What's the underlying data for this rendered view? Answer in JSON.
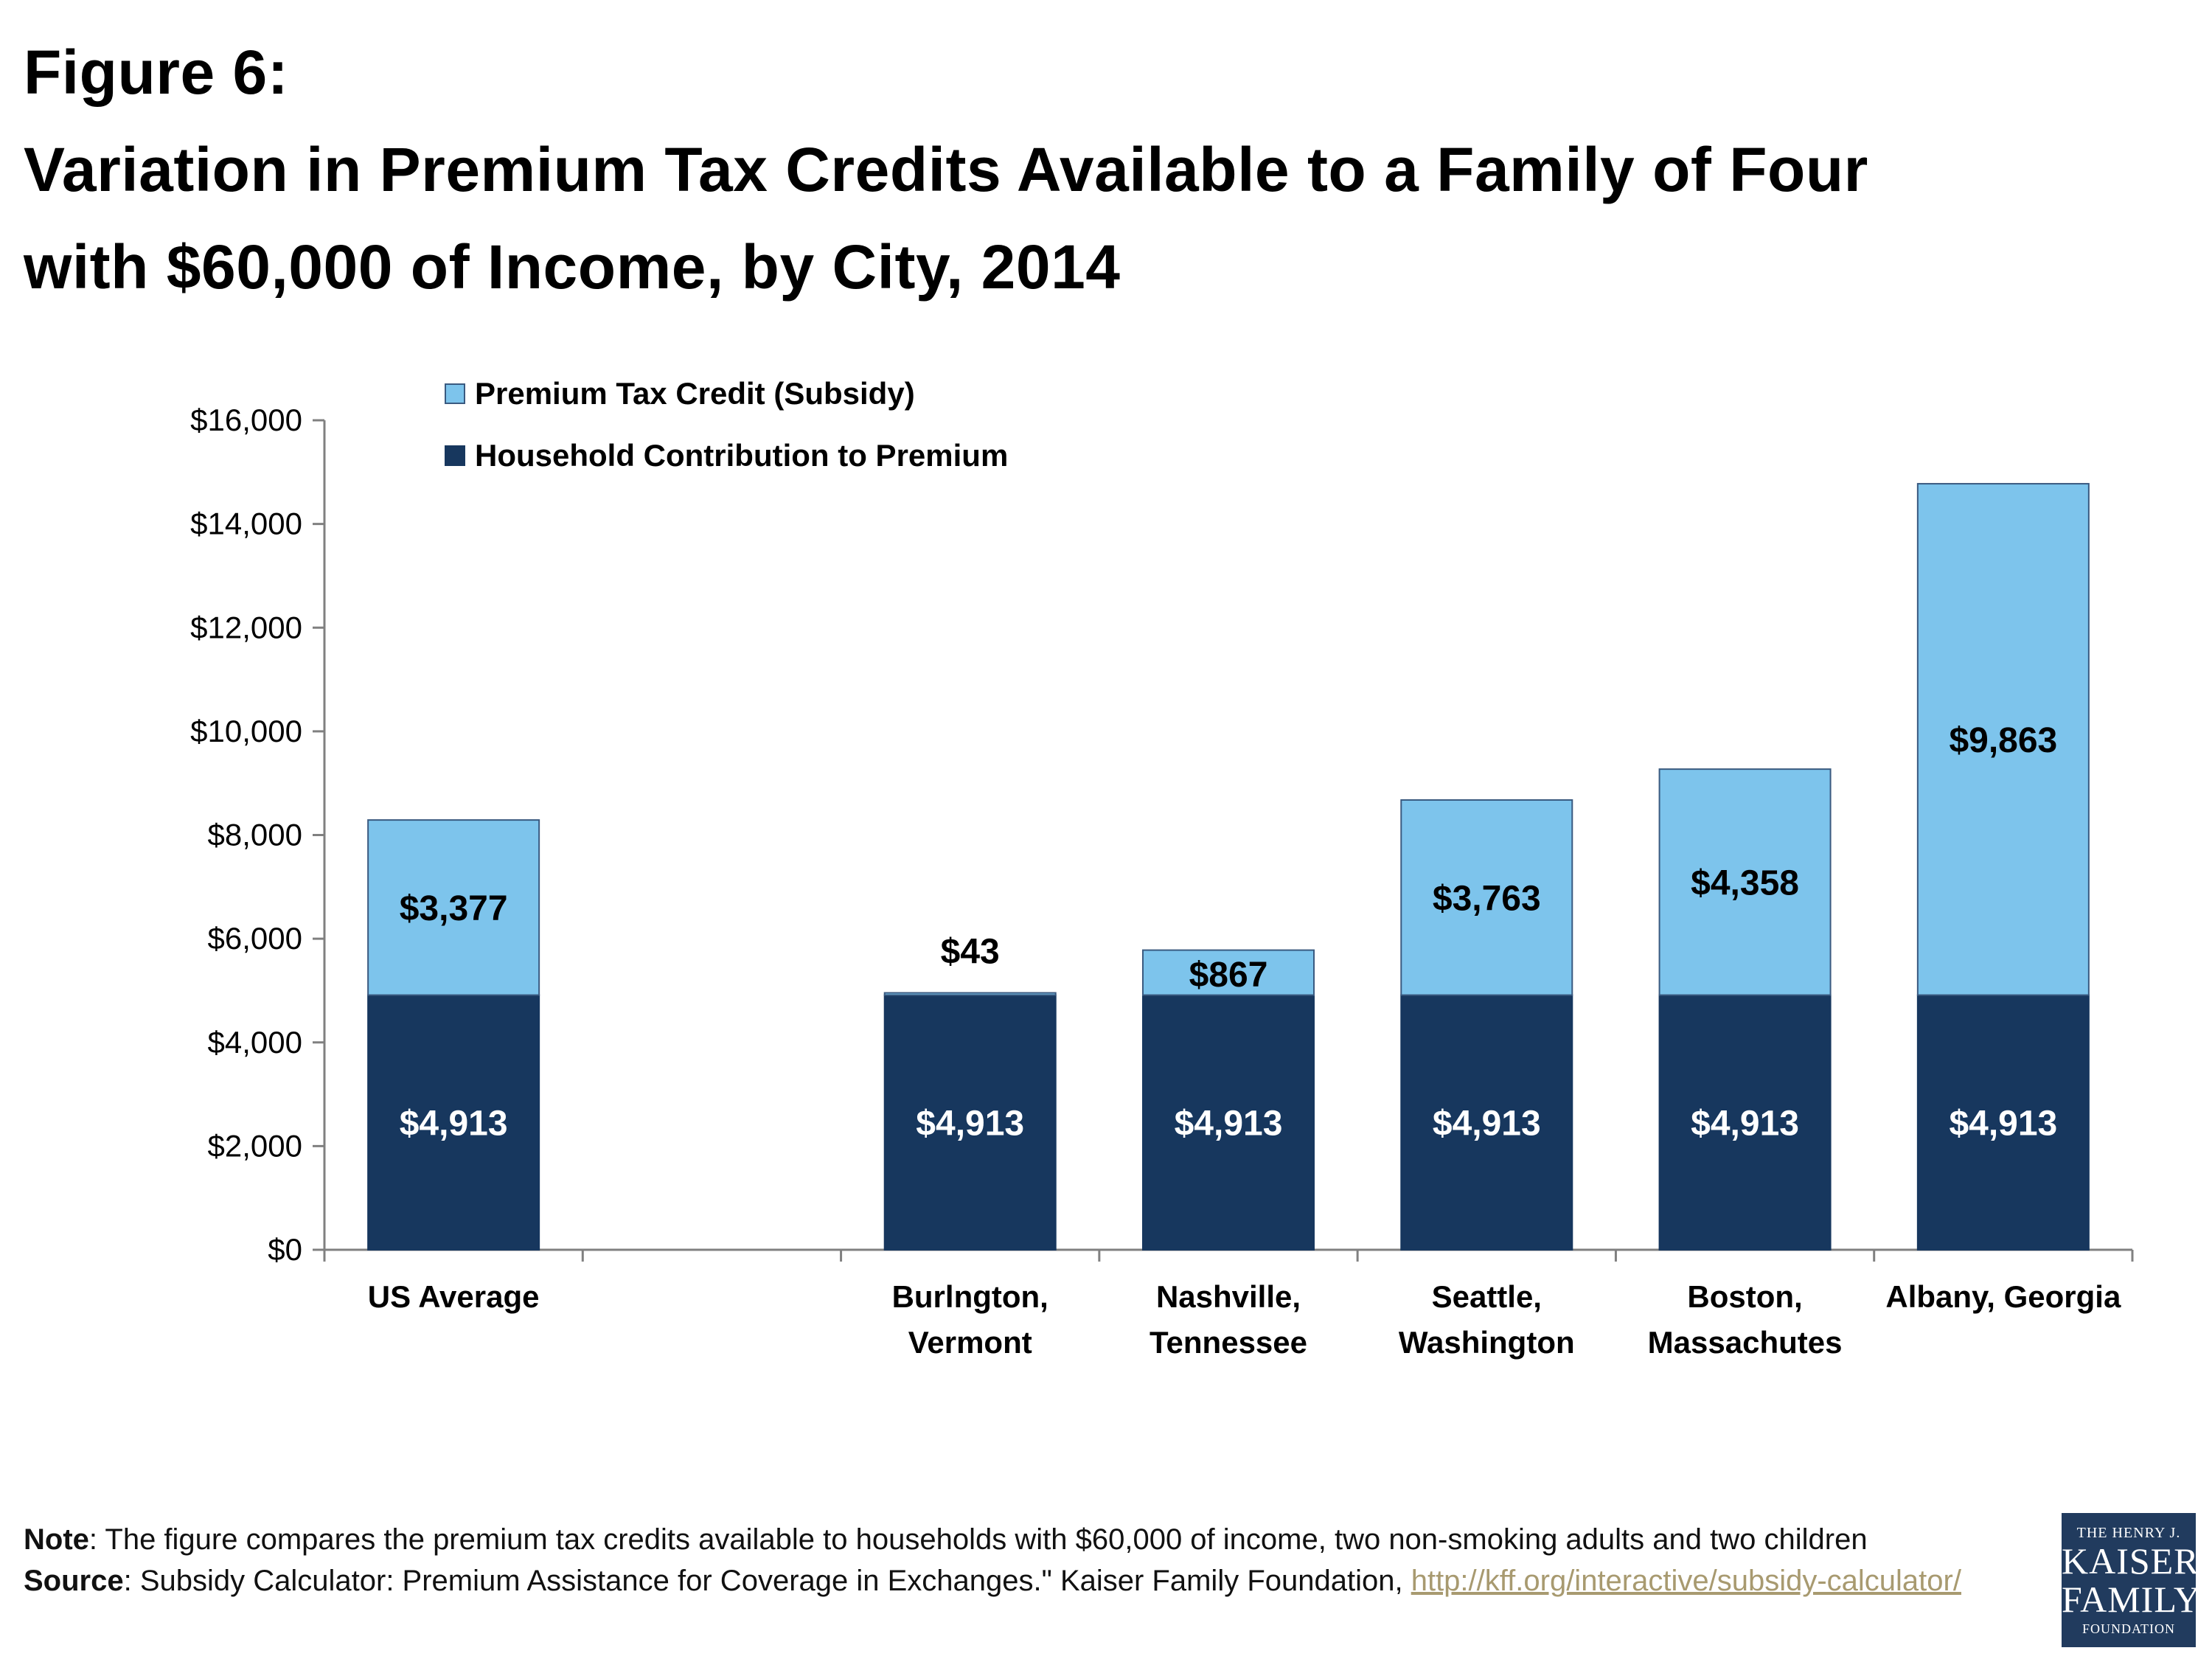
{
  "title": {
    "line1": "Figure 6:",
    "line2": "Variation in Premium Tax Credits Available to a Family of Four",
    "line3": "with $60,000 of Income, by City, 2014"
  },
  "colors": {
    "subsidy": "#7dc4ec",
    "household": "#17375e"
  },
  "chart_data": {
    "type": "bar",
    "stacked": true,
    "title": "Variation in Premium Tax Credits Available to a Family of Four with $60,000 of Income, by City, 2014",
    "ylim": [
      0,
      16000
    ],
    "yticks": [
      0,
      2000,
      4000,
      6000,
      8000,
      10000,
      12000,
      14000,
      16000
    ],
    "ytick_labels": [
      "$0",
      "$2,000",
      "$4,000",
      "$6,000",
      "$8,000",
      "$10,000",
      "$12,000",
      "$14,000",
      "$16,000"
    ],
    "categories": [
      [
        "US Average"
      ],
      [],
      [
        "Burlngton,",
        "Vermont"
      ],
      [
        "Nashville,",
        "Tennessee"
      ],
      [
        "Seattle,",
        "Washington"
      ],
      [
        "Boston,",
        "Massachutes"
      ],
      [
        "Albany, Georgia"
      ]
    ],
    "series": [
      {
        "name": "Household Contribution to Premium",
        "values": [
          4913,
          null,
          4913,
          4913,
          4913,
          4913,
          4913
        ],
        "labels": [
          "$4,913",
          null,
          "$4,913",
          "$4,913",
          "$4,913",
          "$4,913",
          "$4,913"
        ]
      },
      {
        "name": "Premium Tax Credit (Subsidy)",
        "values": [
          3377,
          null,
          43,
          867,
          3763,
          4358,
          9863
        ],
        "labels": [
          "$3,377",
          null,
          "$43",
          "$867",
          "$3,763",
          "$4,358",
          "$9,863"
        ]
      }
    ],
    "legend": [
      "Premium Tax Credit (Subsidy)",
      "Household Contribution to Premium"
    ],
    "legend_position": "top-left"
  },
  "footer": {
    "note_label": "Note",
    "note_text": ": The figure compares the premium tax credits available to households with $60,000 of income, two non-smoking adults and two children",
    "source_label": "Source",
    "source_text": ":  Subsidy Calculator: Premium Assistance for Coverage in Exchanges.\" Kaiser Family Foundation, ",
    "source_url": "http://kff.org/interactive/subsidy-calculator/"
  },
  "logo": {
    "line1": "THE HENRY J.",
    "line2": "KAISER",
    "line3": "FAMILY",
    "line4": "FOUNDATION"
  }
}
